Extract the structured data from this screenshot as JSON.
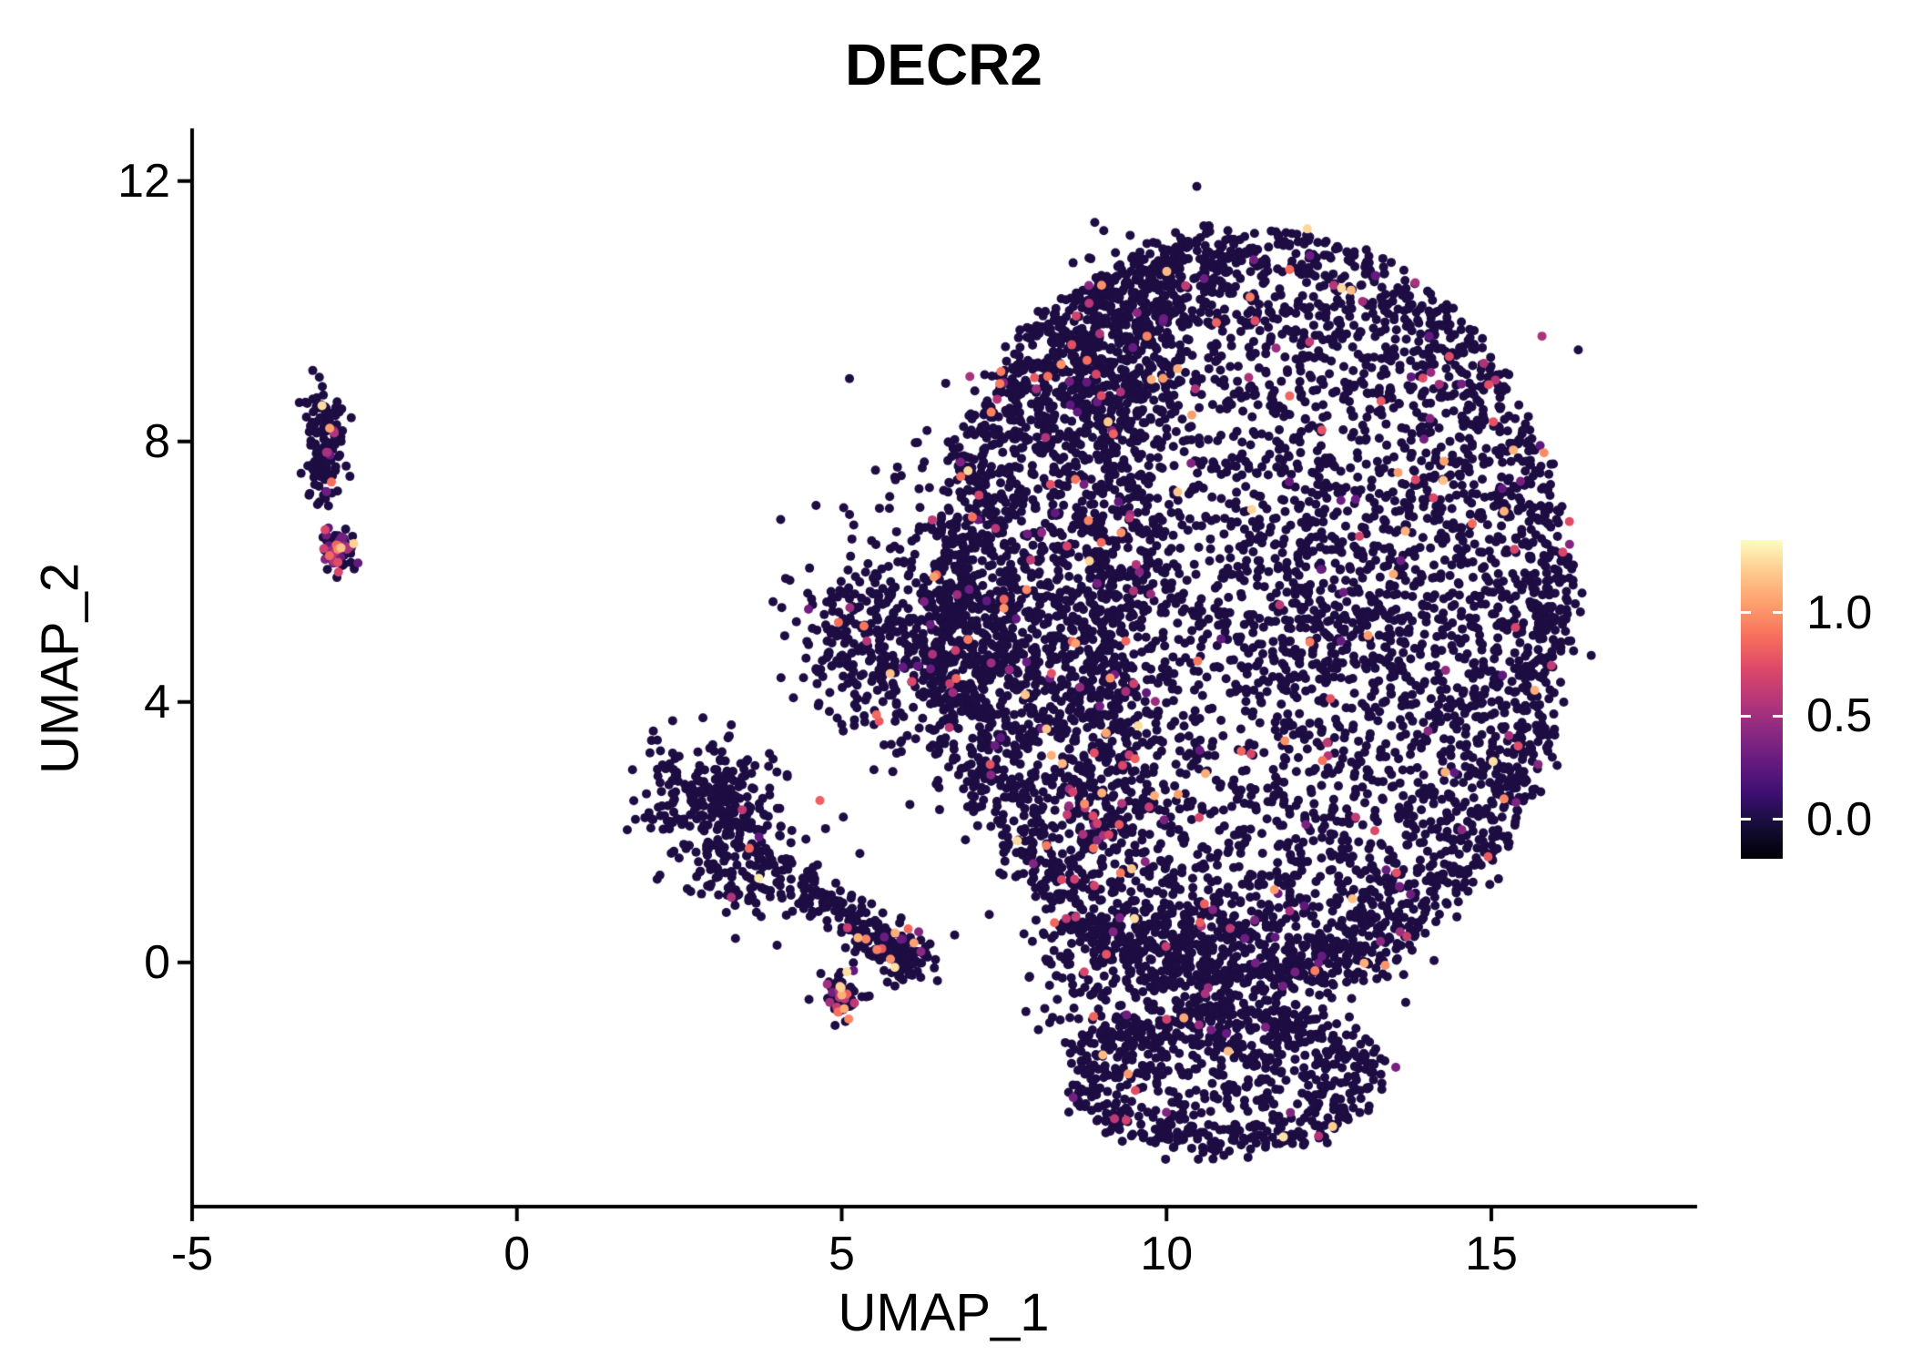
{
  "chart_data": {
    "type": "scatter",
    "title": "DECR2",
    "xlabel": "UMAP_1",
    "ylabel": "UMAP_2",
    "xlim": [
      -5,
      18.14
    ],
    "ylim": [
      -3.75,
      12.78
    ],
    "grid": false,
    "x_ticks": [
      {
        "value": -5,
        "label": "-5"
      },
      {
        "value": 0,
        "label": "0"
      },
      {
        "value": 5,
        "label": "5"
      },
      {
        "value": 10,
        "label": "10"
      },
      {
        "value": 15,
        "label": "15"
      }
    ],
    "y_ticks": [
      {
        "value": 12,
        "label": "12"
      },
      {
        "value": 8,
        "label": "8"
      },
      {
        "value": 4,
        "label": "4"
      },
      {
        "value": 0,
        "label": "0"
      }
    ],
    "colorbar": {
      "position": "right",
      "min": -0.19,
      "max": 1.35,
      "ticks": [
        {
          "value": 1.0,
          "label": "1.0"
        },
        {
          "value": 0.5,
          "label": "0.5"
        },
        {
          "value": 0.0,
          "label": "0.0"
        }
      ],
      "colormap": "magma",
      "stops": [
        {
          "t": 0.0,
          "color": "#000004"
        },
        {
          "t": 0.1,
          "color": "#140d35"
        },
        {
          "t": 0.2,
          "color": "#3b0f70"
        },
        {
          "t": 0.3,
          "color": "#641a80"
        },
        {
          "t": 0.4,
          "color": "#8c2981"
        },
        {
          "t": 0.5,
          "color": "#b73779"
        },
        {
          "t": 0.6,
          "color": "#de4968"
        },
        {
          "t": 0.7,
          "color": "#f7705c"
        },
        {
          "t": 0.8,
          "color": "#fe9f6d"
        },
        {
          "t": 0.9,
          "color": "#fec98d"
        },
        {
          "t": 1.0,
          "color": "#fcfdbf"
        }
      ]
    },
    "value_range_observed": [
      0.0,
      1.3
    ],
    "point_cloud": {
      "seed": 42,
      "point_radius_px": 5,
      "clusters": [
        {
          "name": "left-islet-top",
          "type": "gauss",
          "cx": -2.95,
          "cy": 7.95,
          "sx": 0.14,
          "sy": 0.42,
          "n": 150,
          "colored_frac": 0.06
        },
        {
          "name": "left-islet-bottom",
          "type": "gauss",
          "cx": -2.75,
          "cy": 6.35,
          "sx": 0.12,
          "sy": 0.17,
          "n": 80,
          "colored_frac": 0.45
        },
        {
          "name": "mid-cluster-upper",
          "type": "gauss",
          "cx": 2.95,
          "cy": 2.45,
          "sx": 0.5,
          "sy": 0.5,
          "n": 240,
          "colored_frac": 0.02
        },
        {
          "name": "mid-cluster-lower",
          "type": "gauss",
          "cx": 3.6,
          "cy": 1.55,
          "sx": 0.55,
          "sy": 0.45,
          "n": 150,
          "colored_frac": 0.04
        },
        {
          "name": "mid-tail",
          "type": "line",
          "x1": 4.35,
          "y1": 1.15,
          "x2": 6.1,
          "y2": 0.1,
          "sx": 0.22,
          "sy": 0.2,
          "n": 150,
          "colored_frac": 0.04
        },
        {
          "name": "tail-end-a",
          "type": "gauss",
          "cx": 5.0,
          "cy": -0.55,
          "sx": 0.18,
          "sy": 0.15,
          "n": 55,
          "colored_frac": 0.25
        },
        {
          "name": "tail-end-b",
          "type": "gauss",
          "cx": 5.85,
          "cy": 0.1,
          "sx": 0.25,
          "sy": 0.2,
          "n": 70,
          "colored_frac": 0.08
        },
        {
          "name": "main-blob",
          "type": "disk",
          "cx": 11.3,
          "cy": 5.4,
          "rx": 4.95,
          "ry": 5.85,
          "rimBias": 0.5,
          "n": 4300,
          "colored_frac": 0.035
        },
        {
          "name": "main-left-wedge",
          "type": "gauss",
          "cx": 6.8,
          "cy": 5.1,
          "sx": 1.0,
          "sy": 1.1,
          "n": 650,
          "colored_frac": 0.04
        },
        {
          "name": "main-left-tip",
          "type": "gauss",
          "cx": 5.3,
          "cy": 5.0,
          "sx": 0.45,
          "sy": 0.55,
          "n": 140,
          "colored_frac": 0.03
        },
        {
          "name": "dense-vertical-band",
          "type": "line",
          "x1": 8.85,
          "y1": 1.8,
          "x2": 9.35,
          "y2": 9.8,
          "sx": 0.45,
          "sy": 0.4,
          "n": 650,
          "colored_frac": 0.1
        },
        {
          "name": "top-arc",
          "type": "line",
          "x1": 7.6,
          "y1": 7.6,
          "x2": 10.2,
          "y2": 10.9,
          "sx": 0.55,
          "sy": 0.45,
          "n": 420,
          "colored_frac": 0.03
        },
        {
          "name": "right-patch",
          "type": "gauss",
          "cx": 13.0,
          "cy": 5.3,
          "sx": 1.3,
          "sy": 1.6,
          "n": 480,
          "colored_frac": 0.04
        },
        {
          "name": "bottom-edge-band",
          "type": "line",
          "x1": 8.2,
          "y1": 0.25,
          "x2": 13.6,
          "y2": 0.3,
          "sx": 0.3,
          "sy": 0.38,
          "n": 430,
          "colored_frac": 0.03
        },
        {
          "name": "bottom-lobe",
          "type": "disk",
          "cx": 10.9,
          "cy": -1.75,
          "rx": 2.45,
          "ry": 1.15,
          "rimBias": 0.4,
          "n": 720,
          "colored_frac": 0.03
        },
        {
          "name": "lobe-neck",
          "type": "gauss",
          "cx": 10.3,
          "cy": -0.8,
          "sx": 1.2,
          "sy": 0.5,
          "n": 180,
          "colored_frac": 0.03
        },
        {
          "name": "sparse-fill",
          "type": "disk",
          "cx": 10.8,
          "cy": 5.0,
          "rx": 5.3,
          "ry": 6.2,
          "rimBias": 0,
          "n": 260,
          "colored_frac": 0.05
        }
      ],
      "highlight_points": [
        {
          "x": -3.0,
          "y": 8.55,
          "v": 1.25
        },
        {
          "x": -2.75,
          "y": 6.4,
          "v": 0.85
        },
        {
          "x": -2.85,
          "y": 6.25,
          "v": 0.6
        },
        {
          "x": 5.0,
          "y": -0.5,
          "v": 1.1
        },
        {
          "x": 5.75,
          "y": 0.05,
          "v": 1.0
        },
        {
          "x": 3.3,
          "y": 1.0,
          "v": 0.55
        },
        {
          "x": 9.1,
          "y": 8.3,
          "v": 1.2
        },
        {
          "x": 9.0,
          "y": 10.4,
          "v": 1.0
        },
        {
          "x": 8.6,
          "y": 4.9,
          "v": 1.05
        },
        {
          "x": 10.6,
          "y": 2.9,
          "v": 1.1
        },
        {
          "x": 12.4,
          "y": 3.1,
          "v": 0.9
        },
        {
          "x": 11.3,
          "y": 3.2,
          "v": 0.7
        },
        {
          "x": 7.3,
          "y": 8.45,
          "v": 0.95
        },
        {
          "x": 9.3,
          "y": 6.6,
          "v": 1.0
        },
        {
          "x": 13.7,
          "y": 0.4,
          "v": 0.65
        },
        {
          "x": 9.2,
          "y": -2.4,
          "v": 0.6
        },
        {
          "x": 16.1,
          "y": 6.3,
          "v": 0.7
        }
      ]
    }
  }
}
